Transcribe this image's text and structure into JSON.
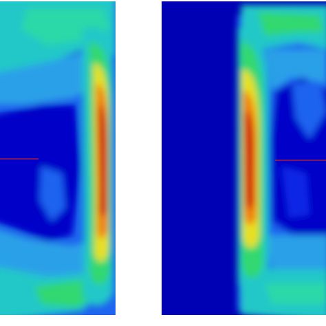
{
  "figure": {
    "panels": [
      {
        "id": "left",
        "field": "contour-plot",
        "marker": "horizontal-red-line"
      },
      {
        "id": "right",
        "field": "contour-plot",
        "marker": "horizontal-red-line"
      }
    ],
    "colors": {
      "background": "#ffffff",
      "dark_blue": "#0000b4",
      "blue": "#0a28e6",
      "mid_blue": "#1e64f0",
      "light_blue": "#2ca0e8",
      "cyan": "#20c8c8",
      "green": "#30d870",
      "yellow": "#e8e020",
      "orange": "#f08010",
      "red": "#d01010",
      "marker_line": "#d02020"
    }
  }
}
